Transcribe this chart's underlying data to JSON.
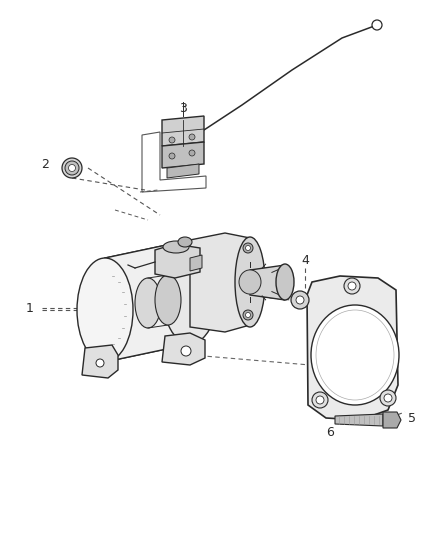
{
  "background_color": "#ffffff",
  "line_color": "#2a2a2a",
  "label_color": "#2a2a2a",
  "fig_width": 4.38,
  "fig_height": 5.33,
  "dpi": 100,
  "label_fontsize": 9,
  "lw_main": 1.0,
  "lw_detail": 0.6,
  "gray_light": "#e8e8e8",
  "gray_mid": "#cccccc",
  "gray_dark": "#aaaaaa",
  "gray_very_dark": "#888888"
}
